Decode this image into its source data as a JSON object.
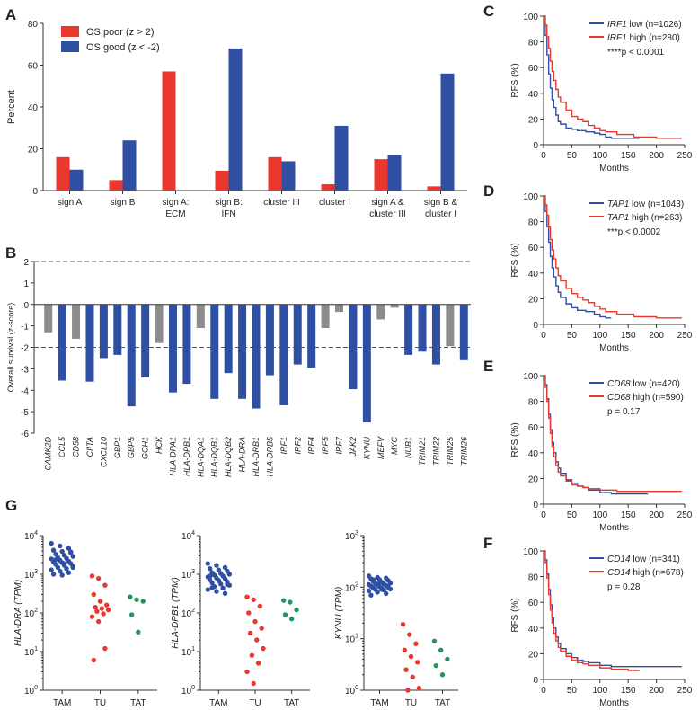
{
  "colors": {
    "red": "#e8382e",
    "blue": "#2f4fa2",
    "gray": "#8c8c8c",
    "green": "#23955a",
    "axis": "#333333"
  },
  "panel_letters": {
    "A": "A",
    "B": "B",
    "C": "C",
    "D": "D",
    "E": "E",
    "F": "F",
    "G": "G"
  },
  "chart_data": [
    {
      "id": "A",
      "type": "bar",
      "ylabel": "Percent",
      "ylim": [
        0,
        80
      ],
      "yticks": [
        0,
        20,
        40,
        60,
        80
      ],
      "legend": [
        "OS poor (z > 2)",
        "OS good (z < -2)"
      ],
      "categories": [
        "sign A",
        "sign B",
        "sign A:\nECM",
        "sign B:\nIFN",
        "cluster III",
        "cluster I",
        "sign A &\ncluster III",
        "sign B &\ncluster I"
      ],
      "series": [
        {
          "name": "OS poor (z > 2)",
          "color": "red",
          "values": [
            16,
            5,
            57,
            9.5,
            16,
            3,
            15,
            2
          ]
        },
        {
          "name": "OS good (z < -2)",
          "color": "blue",
          "values": [
            10,
            24,
            0,
            68,
            14,
            31,
            17,
            56
          ]
        }
      ]
    },
    {
      "id": "B",
      "type": "bar",
      "ylabel": "Overall survival (z-score)",
      "ylim": [
        -6,
        2
      ],
      "yticks": [
        2,
        1,
        0,
        -1,
        -2,
        -3,
        -4,
        -5,
        -6
      ],
      "reference_lines": [
        2,
        -2
      ],
      "categories": [
        "CAMK2D",
        "CCL5",
        "CD58",
        "CIITA",
        "CXCL10",
        "GBP1",
        "GBP5",
        "GCH1",
        "HCK",
        "HLA-DPA1",
        "HLA-DPB1",
        "HLA-DQA1",
        "HLA-DQB1",
        "HLA-DQB2",
        "HLA-DRA",
        "HLA-DRB1",
        "HLA-DRB5",
        "IRF1",
        "IRF2",
        "IRF4",
        "IRF5",
        "IRF7",
        "JAK2",
        "KYNU",
        "MEFV",
        "MYC",
        "NUB1",
        "TRIM21",
        "TRIM22",
        "TRIM25",
        "TRIM26"
      ],
      "values": [
        -1.3,
        -3.55,
        -1.6,
        -3.6,
        -2.5,
        -2.35,
        -4.75,
        -3.4,
        -1.8,
        -4.1,
        -3.7,
        -1.1,
        -4.4,
        -3.2,
        -4.4,
        -4.85,
        -3.3,
        -4.7,
        -2.8,
        -2.95,
        -1.1,
        -0.35,
        -3.95,
        -5.5,
        -0.7,
        -0.15,
        -2.35,
        -2.2,
        -2.8,
        -1.95,
        -2.6
      ],
      "colors": [
        "gray",
        "blue",
        "gray",
        "blue",
        "blue",
        "blue",
        "blue",
        "blue",
        "gray",
        "blue",
        "blue",
        "gray",
        "blue",
        "blue",
        "blue",
        "blue",
        "blue",
        "blue",
        "blue",
        "blue",
        "gray",
        "gray",
        "blue",
        "blue",
        "gray",
        "gray",
        "blue",
        "blue",
        "blue",
        "gray",
        "blue"
      ]
    },
    {
      "id": "C",
      "type": "line",
      "xlabel": "Months",
      "ylabel": "RFS (%)",
      "xlim": [
        0,
        250
      ],
      "ylim": [
        0,
        100
      ],
      "xticks": [
        0,
        50,
        100,
        150,
        200,
        250
      ],
      "yticks": [
        0,
        20,
        40,
        60,
        80,
        100
      ],
      "annotation": "****p < 0.0001",
      "series": [
        {
          "gene": "IRF1",
          "suffix": " low (n=1026)",
          "color": "blue",
          "points": [
            [
              0,
              100
            ],
            [
              3,
              85
            ],
            [
              6,
              70
            ],
            [
              9,
              55
            ],
            [
              12,
              44
            ],
            [
              15,
              35
            ],
            [
              18,
              29
            ],
            [
              22,
              23
            ],
            [
              26,
              18
            ],
            [
              30,
              16
            ],
            [
              40,
              13
            ],
            [
              50,
              12
            ],
            [
              60,
              11
            ],
            [
              75,
              10
            ],
            [
              90,
              9
            ],
            [
              100,
              8
            ],
            [
              110,
              6
            ],
            [
              120,
              5
            ],
            [
              140,
              5
            ],
            [
              170,
              5
            ]
          ]
        },
        {
          "gene": "IRF1",
          "suffix": " high (n=280)",
          "color": "red",
          "points": [
            [
              0,
              100
            ],
            [
              3,
              93
            ],
            [
              6,
              84
            ],
            [
              9,
              75
            ],
            [
              12,
              65
            ],
            [
              15,
              57
            ],
            [
              18,
              50
            ],
            [
              22,
              43
            ],
            [
              26,
              37
            ],
            [
              30,
              33
            ],
            [
              40,
              27
            ],
            [
              50,
              22
            ],
            [
              60,
              20
            ],
            [
              70,
              18
            ],
            [
              80,
              15
            ],
            [
              90,
              13
            ],
            [
              100,
              11
            ],
            [
              110,
              10
            ],
            [
              130,
              8
            ],
            [
              160,
              6
            ],
            [
              200,
              5
            ],
            [
              245,
              5
            ]
          ]
        }
      ]
    },
    {
      "id": "D",
      "type": "line",
      "xlabel": "Months",
      "ylabel": "RFS (%)",
      "xlim": [
        0,
        250
      ],
      "ylim": [
        0,
        100
      ],
      "xticks": [
        0,
        50,
        100,
        150,
        200,
        250
      ],
      "yticks": [
        0,
        20,
        40,
        60,
        80,
        100
      ],
      "annotation": "***p < 0.0002",
      "series": [
        {
          "gene": "TAP1",
          "suffix": " low (n=1043)",
          "color": "blue",
          "points": [
            [
              0,
              100
            ],
            [
              3,
              88
            ],
            [
              6,
              76
            ],
            [
              9,
              64
            ],
            [
              12,
              53
            ],
            [
              15,
              44
            ],
            [
              18,
              37
            ],
            [
              22,
              30
            ],
            [
              26,
              25
            ],
            [
              30,
              21
            ],
            [
              40,
              16
            ],
            [
              50,
              13
            ],
            [
              60,
              11
            ],
            [
              75,
              10
            ],
            [
              90,
              8
            ],
            [
              100,
              6
            ],
            [
              110,
              5
            ],
            [
              120,
              5
            ]
          ]
        },
        {
          "gene": "TAP1",
          "suffix": " high (n=263)",
          "color": "red",
          "points": [
            [
              0,
              100
            ],
            [
              3,
              93
            ],
            [
              6,
              85
            ],
            [
              9,
              76
            ],
            [
              12,
              66
            ],
            [
              15,
              58
            ],
            [
              18,
              51
            ],
            [
              22,
              44
            ],
            [
              26,
              38
            ],
            [
              30,
              34
            ],
            [
              40,
              28
            ],
            [
              50,
              24
            ],
            [
              60,
              21
            ],
            [
              70,
              19
            ],
            [
              80,
              17
            ],
            [
              90,
              14
            ],
            [
              100,
              12
            ],
            [
              110,
              10
            ],
            [
              130,
              8
            ],
            [
              160,
              6
            ],
            [
              200,
              5
            ],
            [
              245,
              5
            ]
          ]
        }
      ]
    },
    {
      "id": "E",
      "type": "line",
      "xlabel": "Months",
      "ylabel": "RFS (%)",
      "xlim": [
        0,
        250
      ],
      "ylim": [
        0,
        100
      ],
      "xticks": [
        0,
        50,
        100,
        150,
        200,
        250
      ],
      "yticks": [
        0,
        20,
        40,
        60,
        80,
        100
      ],
      "annotation": "p = 0.17",
      "series": [
        {
          "gene": "CD68",
          "suffix": " low (n=420)",
          "color": "blue",
          "points": [
            [
              0,
              100
            ],
            [
              3,
              93
            ],
            [
              6,
              82
            ],
            [
              9,
              70
            ],
            [
              12,
              58
            ],
            [
              15,
              48
            ],
            [
              18,
              40
            ],
            [
              22,
              33
            ],
            [
              26,
              28
            ],
            [
              30,
              24
            ],
            [
              40,
              19
            ],
            [
              50,
              16
            ],
            [
              60,
              14
            ],
            [
              70,
              13
            ],
            [
              80,
              11
            ],
            [
              100,
              9
            ],
            [
              120,
              8
            ],
            [
              150,
              8
            ],
            [
              185,
              8
            ]
          ]
        },
        {
          "gene": "CD68",
          "suffix": " high (n=590)",
          "color": "red",
          "points": [
            [
              0,
              100
            ],
            [
              3,
              91
            ],
            [
              6,
              80
            ],
            [
              9,
              67
            ],
            [
              12,
              55
            ],
            [
              15,
              45
            ],
            [
              18,
              37
            ],
            [
              22,
              30
            ],
            [
              26,
              25
            ],
            [
              30,
              22
            ],
            [
              40,
              18
            ],
            [
              50,
              15
            ],
            [
              60,
              14
            ],
            [
              70,
              13
            ],
            [
              80,
              12
            ],
            [
              100,
              11
            ],
            [
              130,
              10
            ],
            [
              200,
              10
            ],
            [
              245,
              10
            ]
          ]
        }
      ]
    },
    {
      "id": "F",
      "type": "line",
      "xlabel": "Months",
      "ylabel": "RFS (%)",
      "xlim": [
        0,
        250
      ],
      "ylim": [
        0,
        100
      ],
      "xticks": [
        0,
        50,
        100,
        150,
        200,
        250
      ],
      "yticks": [
        0,
        20,
        40,
        60,
        80,
        100
      ],
      "annotation": "p = 0.28",
      "series": [
        {
          "gene": "CD14",
          "suffix": " low (n=341)",
          "color": "blue",
          "points": [
            [
              0,
              100
            ],
            [
              3,
              93
            ],
            [
              6,
              82
            ],
            [
              9,
              70
            ],
            [
              12,
              58
            ],
            [
              15,
              48
            ],
            [
              18,
              40
            ],
            [
              22,
              33
            ],
            [
              26,
              28
            ],
            [
              30,
              24
            ],
            [
              40,
              20
            ],
            [
              50,
              17
            ],
            [
              60,
              15
            ],
            [
              70,
              14
            ],
            [
              80,
              13
            ],
            [
              100,
              11
            ],
            [
              120,
              10
            ],
            [
              160,
              10
            ],
            [
              245,
              10
            ]
          ]
        },
        {
          "gene": "CD14",
          "suffix": " high (n=678)",
          "color": "red",
          "points": [
            [
              0,
              100
            ],
            [
              3,
              91
            ],
            [
              6,
              79
            ],
            [
              9,
              66
            ],
            [
              12,
              54
            ],
            [
              15,
              44
            ],
            [
              18,
              36
            ],
            [
              22,
              30
            ],
            [
              26,
              25
            ],
            [
              30,
              22
            ],
            [
              40,
              18
            ],
            [
              50,
              15
            ],
            [
              60,
              13
            ],
            [
              70,
              12
            ],
            [
              80,
              11
            ],
            [
              100,
              9
            ],
            [
              120,
              8
            ],
            [
              150,
              7
            ],
            [
              170,
              7
            ]
          ]
        }
      ]
    },
    {
      "id": "G1",
      "type": "scatter",
      "ylabel": "HLA-DRA (TPM)",
      "log_decades": [
        0,
        4
      ],
      "categories": [
        "TAM",
        "TU",
        "TAT"
      ],
      "group_colors": [
        "blue",
        "red",
        "green"
      ],
      "values": [
        [
          6300,
          5400,
          4700,
          4200,
          3900,
          3600,
          3300,
          3100,
          2900,
          2700,
          2600,
          2500,
          2300,
          2200,
          2100,
          2000,
          1900,
          1800,
          1700,
          1600,
          1500,
          1400,
          1300,
          1200,
          1100,
          1000,
          950,
          3800,
          2400,
          1900,
          1500
        ],
        [
          900,
          780,
          520,
          300,
          200,
          160,
          140,
          130,
          120,
          110,
          95,
          80,
          60,
          12,
          6
        ],
        [
          260,
          220,
          200,
          90,
          32
        ]
      ]
    },
    {
      "id": "G2",
      "type": "scatter",
      "ylabel": "HLA-DPB1 (TPM)",
      "log_decades": [
        0,
        4
      ],
      "categories": [
        "TAM",
        "TU",
        "TAT"
      ],
      "group_colors": [
        "blue",
        "red",
        "green"
      ],
      "values": [
        [
          1900,
          1700,
          1500,
          1400,
          1300,
          1200,
          1100,
          1050,
          1000,
          950,
          900,
          850,
          800,
          760,
          720,
          680,
          640,
          600,
          560,
          520,
          480,
          440,
          400,
          360,
          320,
          900,
          700,
          550,
          450
        ],
        [
          260,
          220,
          150,
          100,
          60,
          40,
          30,
          20,
          12,
          8,
          5,
          3,
          1.5
        ],
        [
          210,
          190,
          120,
          90,
          70
        ]
      ]
    },
    {
      "id": "G3",
      "type": "scatter",
      "ylabel": "KYNU (TPM)",
      "log_decades": [
        0,
        3
      ],
      "categories": [
        "TAM",
        "TU",
        "TAT"
      ],
      "group_colors": [
        "blue",
        "red",
        "green"
      ],
      "values": [
        [
          165,
          155,
          150,
          145,
          140,
          135,
          130,
          125,
          120,
          118,
          115,
          112,
          110,
          108,
          105,
          102,
          100,
          98,
          95,
          92,
          90,
          88,
          85,
          80,
          75,
          70,
          120,
          100,
          140,
          90
        ],
        [
          19,
          12,
          8,
          6,
          4.5,
          3.5,
          2.5,
          1.8,
          1.1,
          1.0
        ],
        [
          9,
          6,
          4,
          3,
          2
        ]
      ]
    }
  ]
}
